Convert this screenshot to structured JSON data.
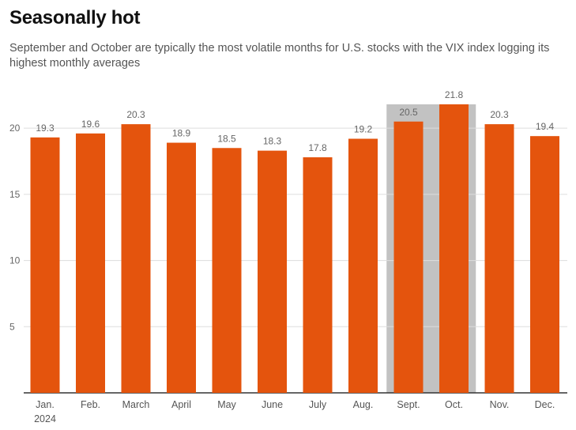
{
  "title": "Seasonally hot",
  "subtitle": "September and October are typically the most volatile months for U.S. stocks with the VIX index logging its highest monthly averages",
  "colors": {
    "bar": "#e4540d",
    "highlight": "#c2c2c2",
    "grid": "#dddddd",
    "axis": "#333333"
  },
  "chart_data": {
    "type": "bar",
    "title": "Seasonally hot",
    "xlabel": "",
    "ylabel": "",
    "categories": [
      "Jan.",
      "Feb.",
      "March",
      "April",
      "May",
      "June",
      "July",
      "Aug.",
      "Sept.",
      "Oct.",
      "Nov.",
      "Dec."
    ],
    "category_sublabel": {
      "index": 0,
      "text": "2024"
    },
    "values": [
      19.3,
      19.6,
      20.3,
      18.9,
      18.5,
      18.3,
      17.8,
      19.2,
      20.5,
      21.8,
      20.3,
      19.4
    ],
    "value_labels": [
      "19.3",
      "19.6",
      "20.3",
      "18.9",
      "18.5",
      "18.3",
      "17.8",
      "19.2",
      "20.5",
      "21.8",
      "20.3",
      "19.4"
    ],
    "highlighted_categories": [
      "Sept.",
      "Oct."
    ],
    "yticks": [
      5,
      10,
      15,
      20
    ],
    "ytick_labels": [
      "5",
      "10",
      "15",
      "20"
    ],
    "ylim": [
      0,
      21.8
    ],
    "grid": true
  }
}
